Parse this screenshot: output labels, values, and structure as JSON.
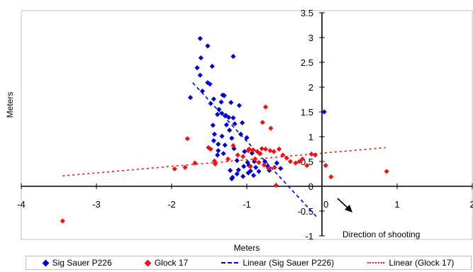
{
  "chart_data": {
    "type": "scatter",
    "title": "",
    "xlabel": "Meters",
    "ylabel": "Meters",
    "xlim": [
      -4,
      2
    ],
    "ylim": [
      -1,
      3.5
    ],
    "x_ticks": [
      "-4",
      "-3",
      "-2",
      "-1",
      "0",
      "1",
      "2"
    ],
    "y_ticks": [
      "-1",
      "-0.5",
      "0",
      "0.5",
      "1",
      "1.5",
      "2",
      "2.5",
      "3",
      "3.5"
    ],
    "grid": false,
    "legend_position": "bottom",
    "annotation": "Direction of shooting",
    "series": [
      {
        "name": "Sig Sauer P226",
        "color": "#0000cc",
        "marker": "diamond",
        "points": [
          [
            -1.62,
            2.98
          ],
          [
            -1.52,
            2.83
          ],
          [
            -1.61,
            2.59
          ],
          [
            -1.18,
            2.62
          ],
          [
            -1.46,
            2.42
          ],
          [
            -1.66,
            2.39
          ],
          [
            -1.62,
            2.24
          ],
          [
            -1.52,
            2.09
          ],
          [
            -1.49,
            2.06
          ],
          [
            -1.59,
            1.92
          ],
          [
            -1.75,
            1.79
          ],
          [
            -1.32,
            1.84
          ],
          [
            -1.3,
            1.83
          ],
          [
            -1.44,
            1.76
          ],
          [
            -1.48,
            1.67
          ],
          [
            -1.34,
            1.7
          ],
          [
            -1.21,
            1.69
          ],
          [
            -1.37,
            1.55
          ],
          [
            -1.1,
            1.63
          ],
          [
            -1.39,
            1.45
          ],
          [
            -1.33,
            1.47
          ],
          [
            -1.28,
            1.43
          ],
          [
            -1.18,
            1.38
          ],
          [
            -1.24,
            1.39
          ],
          [
            -1.16,
            1.26
          ],
          [
            -1.27,
            1.24
          ],
          [
            -1.45,
            1.23
          ],
          [
            -1.06,
            1.28
          ],
          [
            -1.23,
            1.13
          ],
          [
            -1.43,
            1.05
          ],
          [
            -1.33,
            1.01
          ],
          [
            -1.08,
            1.05
          ],
          [
            -1.0,
            0.98
          ],
          [
            -1.2,
            0.97
          ],
          [
            -1.44,
            0.92
          ],
          [
            -1.38,
            0.85
          ],
          [
            -1.29,
            0.83
          ],
          [
            -1.17,
            0.76
          ],
          [
            -1.38,
            0.72
          ],
          [
            -1.03,
            0.7
          ],
          [
            -0.93,
            0.67
          ],
          [
            -1.31,
            0.66
          ],
          [
            -1.39,
            0.63
          ],
          [
            -1.13,
            0.52
          ],
          [
            -0.99,
            0.48
          ],
          [
            -0.9,
            0.5
          ],
          [
            -0.76,
            0.5
          ],
          [
            -0.6,
            0.47
          ],
          [
            -0.97,
            0.42
          ],
          [
            -1.04,
            0.4
          ],
          [
            -0.88,
            0.38
          ],
          [
            -0.72,
            0.4
          ],
          [
            -0.55,
            0.36
          ],
          [
            -1.22,
            0.32
          ],
          [
            -1.11,
            0.33
          ],
          [
            -0.95,
            0.31
          ],
          [
            -0.84,
            0.3
          ],
          [
            -0.7,
            0.32
          ],
          [
            -0.98,
            0.27
          ],
          [
            -1.13,
            0.25
          ],
          [
            -1.05,
            0.2
          ],
          [
            -0.91,
            0.22
          ],
          [
            -1.19,
            0.18
          ],
          [
            -1.2,
            0.15
          ],
          [
            0.03,
            1.5
          ]
        ]
      },
      {
        "name": "Glock 17",
        "color": "#ee1111",
        "marker": "diamond",
        "points": [
          [
            -3.45,
            -0.7
          ],
          [
            -1.96,
            0.35
          ],
          [
            -1.82,
            0.38
          ],
          [
            -1.69,
            0.47
          ],
          [
            -1.79,
            0.96
          ],
          [
            -1.51,
            0.78
          ],
          [
            -1.48,
            0.75
          ],
          [
            -1.43,
            0.51
          ],
          [
            -1.42,
            0.45
          ],
          [
            -1.25,
            0.55
          ],
          [
            -1.18,
            0.82
          ],
          [
            -1.12,
            0.63
          ],
          [
            -1.05,
            0.6
          ],
          [
            -0.97,
            0.75
          ],
          [
            -0.92,
            0.73
          ],
          [
            -0.86,
            0.7
          ],
          [
            -0.8,
            0.76
          ],
          [
            -0.75,
            0.75
          ],
          [
            -0.69,
            0.72
          ],
          [
            -0.64,
            0.7
          ],
          [
            -0.57,
            0.75
          ],
          [
            -0.52,
            0.63
          ],
          [
            -0.47,
            0.57
          ],
          [
            -0.42,
            0.5
          ],
          [
            -0.35,
            0.47
          ],
          [
            -0.3,
            0.5
          ],
          [
            -0.26,
            0.55
          ],
          [
            -0.2,
            0.42
          ],
          [
            -0.14,
            0.65
          ],
          [
            -0.75,
            1.6
          ],
          [
            -0.79,
            1.29
          ],
          [
            -0.68,
            1.17
          ],
          [
            -0.89,
            0.55
          ],
          [
            -0.84,
            0.48
          ],
          [
            -0.77,
            0.43
          ],
          [
            -0.71,
            0.36
          ],
          [
            -0.95,
            0.4
          ],
          [
            -0.63,
            0.38
          ],
          [
            -0.98,
            0.72
          ],
          [
            -0.82,
            0.66
          ],
          [
            -0.61,
            0.02
          ],
          [
            -0.09,
            0.63
          ],
          [
            0.12,
            0.19
          ],
          [
            0.86,
            0.3
          ],
          [
            0.05,
            0.42
          ]
        ]
      }
    ],
    "trendlines": [
      {
        "name": "Linear (Sig Sauer P226)",
        "color": "#0000cc",
        "dash": "dashed",
        "from": [
          -1.72,
          2.09
        ],
        "to": [
          -0.05,
          -0.65
        ]
      },
      {
        "name": "Linear (Glock 17)",
        "color": "#ee1111",
        "dash": "dotted",
        "from": [
          -3.45,
          0.21
        ],
        "to": [
          0.85,
          0.78
        ]
      }
    ]
  }
}
